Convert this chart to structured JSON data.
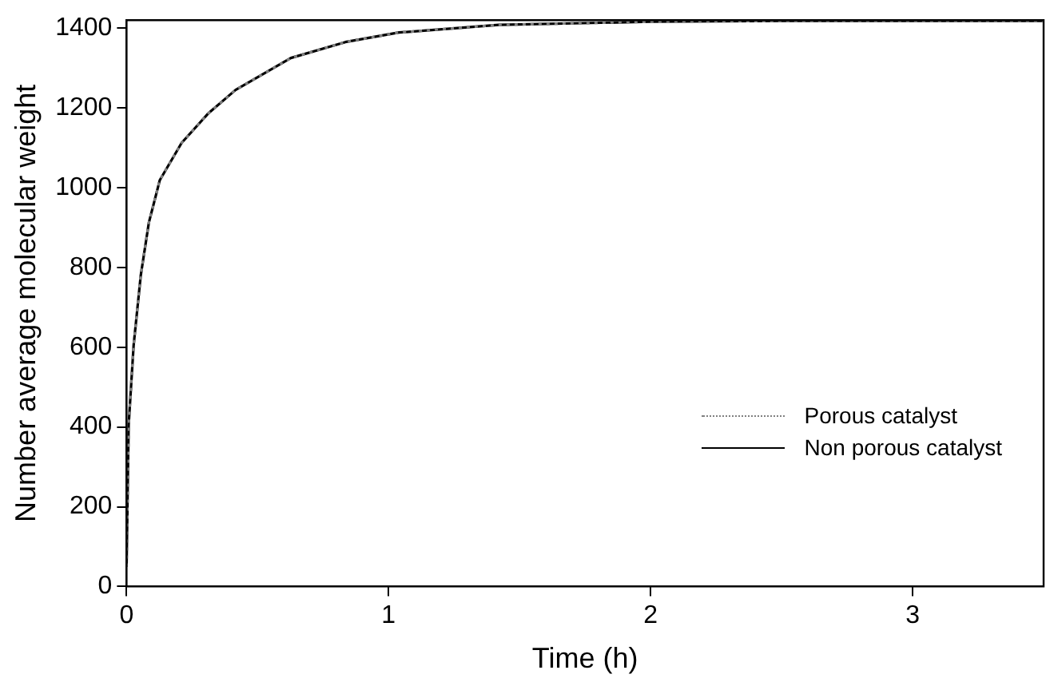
{
  "chart_data": {
    "type": "line",
    "xlabel": "Time (h)",
    "ylabel": "Number average molecular weight",
    "xlim": [
      0,
      3.5
    ],
    "xticks": [
      0,
      1,
      2,
      3
    ],
    "ylim": [
      0,
      1420
    ],
    "yticks": [
      0,
      200,
      400,
      600,
      800,
      1000,
      1200,
      1400
    ],
    "grid": false,
    "legend": "right",
    "marker": "none",
    "series": [
      {
        "name": "Porous catalyst",
        "color": "#808080",
        "line_style": "dotted",
        "x": [
          0,
          0.008,
          0.027,
          0.054,
          0.085,
          0.127,
          0.21,
          0.31,
          0.416,
          0.627,
          0.835,
          1.04,
          1.42,
          2,
          2.5,
          3,
          3.5
        ],
        "values": [
          50,
          405,
          605,
          779,
          912,
          1019,
          1112,
          1185,
          1245,
          1325,
          1365,
          1389,
          1408,
          1416,
          1418,
          1418,
          1418
        ]
      },
      {
        "name": "Non porous catalyst",
        "color": "#000000",
        "line_style": "solid",
        "x": [
          0,
          0.008,
          0.027,
          0.054,
          0.085,
          0.127,
          0.21,
          0.31,
          0.416,
          0.627,
          0.835,
          1.04,
          1.42,
          2,
          2.5,
          3,
          3.5
        ],
        "values": [
          50,
          405,
          605,
          779,
          912,
          1019,
          1112,
          1185,
          1245,
          1325,
          1365,
          1389,
          1408,
          1416,
          1418,
          1418,
          1418
        ]
      }
    ]
  }
}
